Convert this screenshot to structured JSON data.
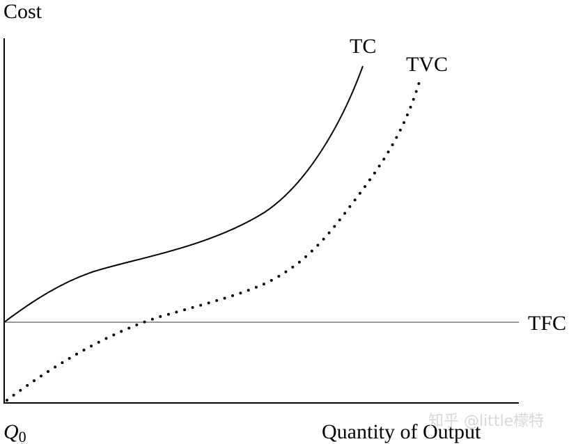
{
  "chart_data": {
    "type": "line",
    "y_label": "Cost",
    "x_label": "Quantity of Output",
    "origin_label": {
      "main": "Q",
      "sub": "0"
    },
    "series": [
      {
        "name": "TC",
        "color": "#000000",
        "style": "solid"
      },
      {
        "name": "TVC",
        "color": "#000000",
        "style": "dotted"
      },
      {
        "name": "TFC",
        "color": "#999999",
        "style": "solid"
      }
    ]
  },
  "watermark": "知乎 @little檬特"
}
